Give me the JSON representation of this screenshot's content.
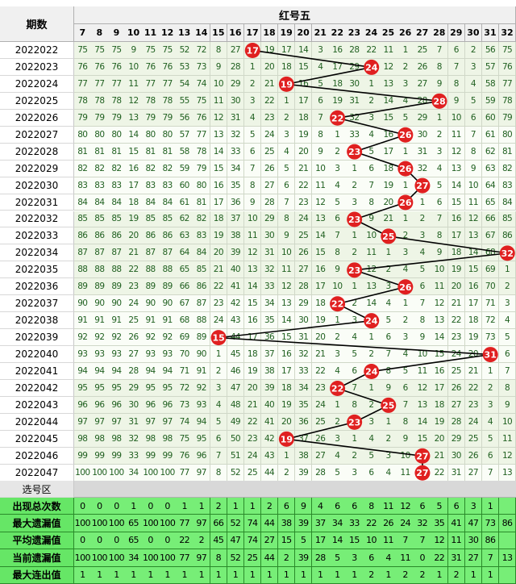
{
  "header": {
    "period_label": "期数",
    "group_label": "红号五"
  },
  "columns": [
    7,
    8,
    9,
    10,
    11,
    12,
    13,
    14,
    15,
    16,
    17,
    18,
    19,
    20,
    21,
    22,
    23,
    24,
    25,
    26,
    27,
    28,
    29,
    30,
    31,
    32
  ],
  "select_label": "选号区",
  "colors": {
    "ball": "#e02020",
    "line": "#000000",
    "stat_bg": "#77ee77",
    "grid_text": "#206020"
  },
  "chart_data": {
    "type": "table",
    "title": "红号五",
    "periods": [
      "2022022",
      "2022023",
      "2022024",
      "2022025",
      "2022026",
      "2022027",
      "2022028",
      "2022029",
      "2022030",
      "2022031",
      "2022032",
      "2022033",
      "2022034",
      "2022035",
      "2022036",
      "2022037",
      "2022038",
      "2022039",
      "2022040",
      "2022041",
      "2022042",
      "2022043",
      "2022044",
      "2022045",
      "2022046",
      "2022047"
    ],
    "hits": [
      17,
      24,
      19,
      28,
      22,
      26,
      23,
      26,
      27,
      26,
      23,
      25,
      32,
      23,
      26,
      22,
      24,
      15,
      31,
      24,
      22,
      25,
      23,
      19,
      27,
      27
    ],
    "rows": [
      [
        "75",
        "75",
        "75",
        "9",
        "75",
        "75",
        "52",
        "72",
        "8",
        "27",
        "17",
        "19",
        "17",
        "14",
        "3",
        "16",
        "28",
        "22",
        "11",
        "1",
        "25",
        "7",
        "6",
        "2",
        "56",
        "75"
      ],
      [
        "76",
        "76",
        "76",
        "10",
        "76",
        "76",
        "53",
        "73",
        "9",
        "28",
        "1",
        "20",
        "18",
        "15",
        "4",
        "17",
        "29",
        "24",
        "12",
        "2",
        "26",
        "8",
        "7",
        "3",
        "57",
        "76"
      ],
      [
        "77",
        "77",
        "77",
        "11",
        "77",
        "77",
        "54",
        "74",
        "10",
        "29",
        "2",
        "21",
        "19",
        "16",
        "5",
        "18",
        "30",
        "1",
        "13",
        "3",
        "27",
        "9",
        "8",
        "4",
        "58",
        "77"
      ],
      [
        "78",
        "78",
        "78",
        "12",
        "78",
        "78",
        "55",
        "75",
        "11",
        "30",
        "3",
        "22",
        "1",
        "17",
        "6",
        "19",
        "31",
        "2",
        "14",
        "4",
        "28",
        "28",
        "9",
        "5",
        "59",
        "78"
      ],
      [
        "79",
        "79",
        "79",
        "13",
        "79",
        "79",
        "56",
        "76",
        "12",
        "31",
        "4",
        "23",
        "2",
        "18",
        "7",
        "22",
        "32",
        "3",
        "15",
        "5",
        "29",
        "1",
        "10",
        "6",
        "60",
        "79"
      ],
      [
        "80",
        "80",
        "80",
        "14",
        "80",
        "80",
        "57",
        "77",
        "13",
        "32",
        "5",
        "24",
        "3",
        "19",
        "8",
        "1",
        "33",
        "4",
        "16",
        "26",
        "30",
        "2",
        "11",
        "7",
        "61",
        "80"
      ],
      [
        "81",
        "81",
        "81",
        "15",
        "81",
        "81",
        "58",
        "78",
        "14",
        "33",
        "6",
        "25",
        "4",
        "20",
        "9",
        "2",
        "23",
        "5",
        "17",
        "1",
        "31",
        "3",
        "12",
        "8",
        "62",
        "81"
      ],
      [
        "82",
        "82",
        "82",
        "16",
        "82",
        "82",
        "59",
        "79",
        "15",
        "34",
        "7",
        "26",
        "5",
        "21",
        "10",
        "3",
        "1",
        "6",
        "18",
        "26",
        "32",
        "4",
        "13",
        "9",
        "63",
        "82"
      ],
      [
        "83",
        "83",
        "83",
        "17",
        "83",
        "83",
        "60",
        "80",
        "16",
        "35",
        "8",
        "27",
        "6",
        "22",
        "11",
        "4",
        "2",
        "7",
        "19",
        "1",
        "27",
        "5",
        "14",
        "10",
        "64",
        "83"
      ],
      [
        "84",
        "84",
        "84",
        "18",
        "84",
        "84",
        "61",
        "81",
        "17",
        "36",
        "9",
        "28",
        "7",
        "23",
        "12",
        "5",
        "3",
        "8",
        "20",
        "26",
        "1",
        "6",
        "15",
        "11",
        "65",
        "84"
      ],
      [
        "85",
        "85",
        "85",
        "19",
        "85",
        "85",
        "62",
        "82",
        "18",
        "37",
        "10",
        "29",
        "8",
        "24",
        "13",
        "6",
        "23",
        "9",
        "21",
        "1",
        "2",
        "7",
        "16",
        "12",
        "66",
        "85"
      ],
      [
        "86",
        "86",
        "86",
        "20",
        "86",
        "86",
        "63",
        "83",
        "19",
        "38",
        "11",
        "30",
        "9",
        "25",
        "14",
        "7",
        "1",
        "10",
        "25",
        "2",
        "3",
        "8",
        "17",
        "13",
        "67",
        "86"
      ],
      [
        "87",
        "87",
        "87",
        "21",
        "87",
        "87",
        "64",
        "84",
        "20",
        "39",
        "12",
        "31",
        "10",
        "26",
        "15",
        "8",
        "2",
        "11",
        "1",
        "3",
        "4",
        "9",
        "18",
        "14",
        "68",
        "32"
      ],
      [
        "88",
        "88",
        "88",
        "22",
        "88",
        "88",
        "65",
        "85",
        "21",
        "40",
        "13",
        "32",
        "11",
        "27",
        "16",
        "9",
        "23",
        "12",
        "2",
        "4",
        "5",
        "10",
        "19",
        "15",
        "69",
        "1"
      ],
      [
        "89",
        "89",
        "89",
        "23",
        "89",
        "89",
        "66",
        "86",
        "22",
        "41",
        "14",
        "33",
        "12",
        "28",
        "17",
        "10",
        "1",
        "13",
        "3",
        "26",
        "6",
        "11",
        "20",
        "16",
        "70",
        "2"
      ],
      [
        "90",
        "90",
        "90",
        "24",
        "90",
        "90",
        "67",
        "87",
        "23",
        "42",
        "15",
        "34",
        "13",
        "29",
        "18",
        "22",
        "2",
        "14",
        "4",
        "1",
        "7",
        "12",
        "21",
        "17",
        "71",
        "3"
      ],
      [
        "91",
        "91",
        "91",
        "25",
        "91",
        "91",
        "68",
        "88",
        "24",
        "43",
        "16",
        "35",
        "14",
        "30",
        "19",
        "1",
        "3",
        "24",
        "5",
        "2",
        "8",
        "13",
        "22",
        "18",
        "72",
        "4"
      ],
      [
        "92",
        "92",
        "92",
        "26",
        "92",
        "92",
        "69",
        "89",
        "15",
        "44",
        "17",
        "36",
        "15",
        "31",
        "20",
        "2",
        "4",
        "1",
        "6",
        "3",
        "9",
        "14",
        "23",
        "19",
        "73",
        "5"
      ],
      [
        "93",
        "93",
        "93",
        "27",
        "93",
        "93",
        "70",
        "90",
        "1",
        "45",
        "18",
        "37",
        "16",
        "32",
        "21",
        "3",
        "5",
        "2",
        "7",
        "4",
        "10",
        "15",
        "24",
        "20",
        "31",
        "6"
      ],
      [
        "94",
        "94",
        "94",
        "28",
        "94",
        "94",
        "71",
        "91",
        "2",
        "46",
        "19",
        "38",
        "17",
        "33",
        "22",
        "4",
        "6",
        "24",
        "8",
        "5",
        "11",
        "16",
        "25",
        "21",
        "1",
        "7"
      ],
      [
        "95",
        "95",
        "95",
        "29",
        "95",
        "95",
        "72",
        "92",
        "3",
        "47",
        "20",
        "39",
        "18",
        "34",
        "23",
        "22",
        "7",
        "1",
        "9",
        "6",
        "12",
        "17",
        "26",
        "22",
        "2",
        "8"
      ],
      [
        "96",
        "96",
        "96",
        "30",
        "96",
        "96",
        "73",
        "93",
        "4",
        "48",
        "21",
        "40",
        "19",
        "35",
        "24",
        "1",
        "8",
        "2",
        "25",
        "7",
        "13",
        "18",
        "27",
        "23",
        "3",
        "9"
      ],
      [
        "97",
        "97",
        "97",
        "31",
        "97",
        "97",
        "74",
        "94",
        "5",
        "49",
        "22",
        "41",
        "20",
        "36",
        "25",
        "2",
        "23",
        "3",
        "1",
        "8",
        "14",
        "19",
        "28",
        "24",
        "4",
        "10"
      ],
      [
        "98",
        "98",
        "98",
        "32",
        "98",
        "98",
        "75",
        "95",
        "6",
        "50",
        "23",
        "42",
        "19",
        "37",
        "26",
        "3",
        "1",
        "4",
        "2",
        "9",
        "15",
        "20",
        "29",
        "25",
        "5",
        "11"
      ],
      [
        "99",
        "99",
        "99",
        "33",
        "99",
        "99",
        "76",
        "96",
        "7",
        "51",
        "24",
        "43",
        "1",
        "38",
        "27",
        "4",
        "2",
        "5",
        "3",
        "10",
        "27",
        "21",
        "30",
        "26",
        "6",
        "12"
      ],
      [
        "100",
        "100",
        "100",
        "34",
        "100",
        "100",
        "77",
        "97",
        "8",
        "52",
        "25",
        "44",
        "2",
        "39",
        "28",
        "5",
        "3",
        "6",
        "4",
        "11",
        "27",
        "22",
        "31",
        "27",
        "7",
        "13"
      ]
    ],
    "stats": [
      {
        "label": "出现总次数",
        "values": [
          "0",
          "0",
          "0",
          "1",
          "0",
          "0",
          "1",
          "1",
          "2",
          "1",
          "1",
          "2",
          "6",
          "9",
          "4",
          "6",
          "6",
          "8",
          "11",
          "12",
          "6",
          "5",
          "6",
          "3",
          "1",
          ""
        ]
      },
      {
        "label": "最大遗漏值",
        "values": [
          "100",
          "100",
          "100",
          "65",
          "100",
          "100",
          "77",
          "97",
          "66",
          "52",
          "74",
          "44",
          "38",
          "39",
          "37",
          "34",
          "33",
          "22",
          "26",
          "24",
          "32",
          "35",
          "41",
          "47",
          "73",
          "86"
        ]
      },
      {
        "label": "平均遗漏值",
        "values": [
          "0",
          "0",
          "0",
          "65",
          "0",
          "0",
          "22",
          "2",
          "45",
          "47",
          "74",
          "27",
          "15",
          "5",
          "17",
          "14",
          "15",
          "10",
          "11",
          "7",
          "7",
          "12",
          "11",
          "30",
          "86",
          ""
        ]
      },
      {
        "label": "当前遗漏值",
        "values": [
          "100",
          "100",
          "100",
          "34",
          "100",
          "100",
          "77",
          "97",
          "8",
          "52",
          "25",
          "44",
          "2",
          "39",
          "28",
          "5",
          "3",
          "6",
          "4",
          "11",
          "0",
          "22",
          "31",
          "27",
          "7",
          "13"
        ]
      },
      {
        "label": "最大连出值",
        "values": [
          "1",
          "1",
          "1",
          "1",
          "1",
          "1",
          "1",
          "1",
          "1",
          "1",
          "1",
          "1",
          "1",
          "1",
          "1",
          "1",
          "1",
          "2",
          "1",
          "2",
          "2",
          "1",
          "2",
          "1",
          "1",
          ""
        ]
      }
    ]
  }
}
